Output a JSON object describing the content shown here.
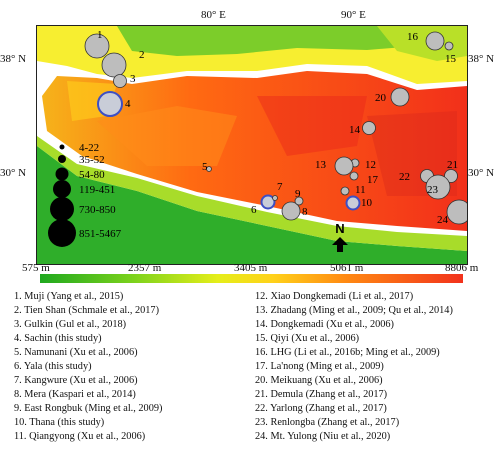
{
  "map": {
    "lon_labels": [
      "80° E",
      "90° E"
    ],
    "lat_labels": [
      "38° N",
      "30° N"
    ],
    "north_label": "N"
  },
  "size_legend": [
    "4-22",
    "35-52",
    "54-80",
    "119-451",
    "730-850",
    "851-5467"
  ],
  "elevation_scale": [
    "575 m",
    "2357 m",
    "3405 m",
    "5061 m",
    "8806 m"
  ],
  "sites": [
    {
      "id": "1",
      "size_class": 4,
      "color": "#bdbdbd"
    },
    {
      "id": "2",
      "size_class": 4,
      "color": "#bdbdbd"
    },
    {
      "id": "3",
      "size_class": 2,
      "color": "#bdbdbd"
    },
    {
      "id": "4",
      "size_class": 4,
      "color": "#3d4fc4"
    },
    {
      "id": "5",
      "size_class": 0,
      "color": "#bdbdbd"
    },
    {
      "id": "6",
      "size_class": 2,
      "color": "#3d4fc4"
    },
    {
      "id": "7",
      "size_class": 0,
      "color": "#bdbdbd"
    },
    {
      "id": "8",
      "size_class": 3,
      "color": "#bdbdbd"
    },
    {
      "id": "9",
      "size_class": 1,
      "color": "#bdbdbd"
    },
    {
      "id": "10",
      "size_class": 2,
      "color": "#3d4fc4"
    },
    {
      "id": "11",
      "size_class": 1,
      "color": "#bdbdbd"
    },
    {
      "id": "12",
      "size_class": 1,
      "color": "#bdbdbd"
    },
    {
      "id": "13",
      "size_class": 3,
      "color": "#bdbdbd"
    },
    {
      "id": "14",
      "size_class": 2,
      "color": "#bdbdbd"
    },
    {
      "id": "15",
      "size_class": 1,
      "color": "#bdbdbd"
    },
    {
      "id": "16",
      "size_class": 3,
      "color": "#bdbdbd"
    },
    {
      "id": "17",
      "size_class": 1,
      "color": "#bdbdbd"
    },
    {
      "id": "20",
      "size_class": 3,
      "color": "#bdbdbd"
    },
    {
      "id": "21",
      "size_class": 2,
      "color": "#bdbdbd"
    },
    {
      "id": "22",
      "size_class": 2,
      "color": "#bdbdbd"
    },
    {
      "id": "23",
      "size_class": 4,
      "color": "#bdbdbd"
    },
    {
      "id": "24",
      "size_class": 4,
      "color": "#bdbdbd"
    }
  ],
  "references_left": [
    "1. Muji (Yang et al., 2015)",
    "2. Tien Shan (Schmale et al., 2017)",
    "3. Gulkin (Gul et al., 2018)",
    "4. Sachin (this study)",
    "5. Namunani (Xu et al., 2006)",
    "6. Yala (this study)",
    "7. Kangwure (Xu et al., 2006)",
    "8. Mera (Kaspari et al., 2014)",
    "9. East Rongbuk (Ming et al., 2009)",
    "10. Thana (this study)",
    "11. Qiangyong (Xu et al., 2006)"
  ],
  "references_right": [
    "12. Xiao Dongkemadi (Li et al., 2017)",
    "13. Zhadang (Ming et al., 2009; Qu et al., 2014)",
    "14. Dongkemadi  (Xu et al., 2006)",
    "15. Qiyi (Xu et al., 2006)",
    "16. LHG (Li et al., 2016b; Ming et al., 2009)",
    "17. La'nong (Ming et al., 2009)",
    "20. Meikuang (Xu et al., 2006)",
    "21. Demula (Zhang et al., 2017)",
    "22. Yarlong (Zhang et al., 2017)",
    "23. Renlongba (Zhang et al., 2017)",
    "24. Mt. Yulong (Niu et al., 2020)"
  ]
}
